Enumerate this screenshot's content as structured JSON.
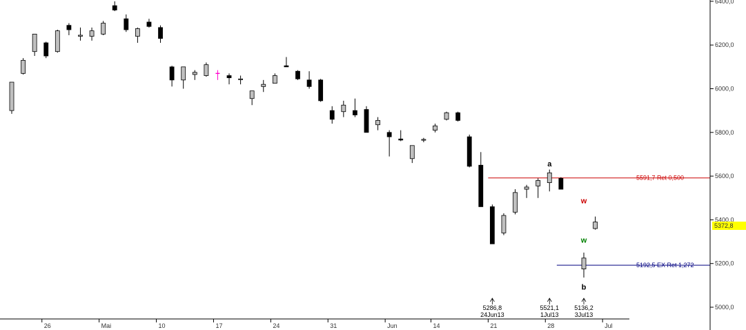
{
  "chart_data": {
    "type": "candlestick",
    "ylim": [
      4950,
      6420
    ],
    "y_ticks": [
      {
        "value": 5000,
        "label": "5000,0"
      },
      {
        "value": 5200,
        "label": "5200,0"
      },
      {
        "value": 5400,
        "label": "5400,0"
      },
      {
        "value": 5600,
        "label": "5600,0"
      },
      {
        "value": 5800,
        "label": "5800,0"
      },
      {
        "value": 6000,
        "label": "6000,0"
      },
      {
        "value": 6200,
        "label": "6200,0"
      },
      {
        "value": 6400,
        "label": "6400,0"
      }
    ],
    "x_ticks": [
      {
        "index": 3,
        "label": "26"
      },
      {
        "index": 8,
        "label": "Mai"
      },
      {
        "index": 13,
        "label": "10"
      },
      {
        "index": 18,
        "label": "17"
      },
      {
        "index": 23,
        "label": "24"
      },
      {
        "index": 28,
        "label": "31"
      },
      {
        "index": 33,
        "label": "Jun"
      },
      {
        "index": 37,
        "label": "14"
      },
      {
        "index": 42,
        "label": "21"
      },
      {
        "index": 47,
        "label": "28"
      },
      {
        "index": 52,
        "label": "Jul"
      }
    ],
    "last_price": {
      "value": 5372.8,
      "label": "5372,8",
      "color": "#ffff00"
    },
    "colors": {
      "up": "#c0c0c0",
      "down": "#000000",
      "doji_highlight": "#ff00cc",
      "grid": "#bbbbbb"
    },
    "candles": [
      {
        "o": 5900,
        "h": 6030,
        "l": 5885,
        "c": 6030
      },
      {
        "o": 6070,
        "h": 6140,
        "l": 6065,
        "c": 6130
      },
      {
        "o": 6170,
        "h": 6250,
        "l": 6150,
        "c": 6250
      },
      {
        "o": 6210,
        "h": 6215,
        "l": 6140,
        "c": 6150
      },
      {
        "o": 6170,
        "h": 6270,
        "l": 6165,
        "c": 6265
      },
      {
        "o": 6290,
        "h": 6300,
        "l": 6245,
        "c": 6270
      },
      {
        "o": 6240,
        "h": 6280,
        "l": 6220,
        "c": 6245
      },
      {
        "o": 6240,
        "h": 6280,
        "l": 6220,
        "c": 6265
      },
      {
        "o": 6250,
        "h": 6310,
        "l": 6245,
        "c": 6300
      },
      {
        "o": 6380,
        "h": 6400,
        "l": 6355,
        "c": 6360
      },
      {
        "o": 6320,
        "h": 6340,
        "l": 6260,
        "c": 6270
      },
      {
        "o": 6240,
        "h": 6280,
        "l": 6210,
        "c": 6275
      },
      {
        "o": 6305,
        "h": 6320,
        "l": 6280,
        "c": 6285
      },
      {
        "o": 6280,
        "h": 6290,
        "l": 6210,
        "c": 6230
      },
      {
        "o": 6100,
        "h": 6105,
        "l": 6010,
        "c": 6040
      },
      {
        "o": 6040,
        "h": 6100,
        "l": 6000,
        "c": 6100
      },
      {
        "o": 6065,
        "h": 6085,
        "l": 6040,
        "c": 6075
      },
      {
        "o": 6060,
        "h": 6120,
        "l": 6055,
        "c": 6110
      },
      {
        "o": 6070,
        "h": 6085,
        "l": 6040,
        "c": 6070,
        "highlight": true
      },
      {
        "o": 6060,
        "h": 6070,
        "l": 6020,
        "c": 6050
      },
      {
        "o": 6045,
        "h": 6060,
        "l": 6020,
        "c": 6045
      },
      {
        "o": 5955,
        "h": 5990,
        "l": 5925,
        "c": 5990
      },
      {
        "o": 6010,
        "h": 6040,
        "l": 5985,
        "c": 6020
      },
      {
        "o": 6025,
        "h": 6070,
        "l": 6025,
        "c": 6060
      },
      {
        "o": 6105,
        "h": 6145,
        "l": 6100,
        "c": 6100
      },
      {
        "o": 6080,
        "h": 6085,
        "l": 6040,
        "c": 6045
      },
      {
        "o": 6040,
        "h": 6080,
        "l": 6000,
        "c": 6010
      },
      {
        "o": 6040,
        "h": 6045,
        "l": 5940,
        "c": 5945
      },
      {
        "o": 5900,
        "h": 5920,
        "l": 5840,
        "c": 5860
      },
      {
        "o": 5895,
        "h": 5945,
        "l": 5870,
        "c": 5925
      },
      {
        "o": 5900,
        "h": 5955,
        "l": 5870,
        "c": 5880
      },
      {
        "o": 5905,
        "h": 5920,
        "l": 5800,
        "c": 5800
      },
      {
        "o": 5835,
        "h": 5870,
        "l": 5810,
        "c": 5855
      },
      {
        "o": 5800,
        "h": 5810,
        "l": 5690,
        "c": 5780
      },
      {
        "o": 5770,
        "h": 5810,
        "l": 5760,
        "c": 5765
      },
      {
        "o": 5680,
        "h": 5740,
        "l": 5660,
        "c": 5740
      },
      {
        "o": 5765,
        "h": 5775,
        "l": 5755,
        "c": 5768
      },
      {
        "o": 5810,
        "h": 5840,
        "l": 5800,
        "c": 5830
      },
      {
        "o": 5860,
        "h": 5895,
        "l": 5855,
        "c": 5890
      },
      {
        "o": 5890,
        "h": 5895,
        "l": 5850,
        "c": 5855
      },
      {
        "o": 5780,
        "h": 5790,
        "l": 5640,
        "c": 5645
      },
      {
        "o": 5650,
        "h": 5710,
        "l": 5460,
        "c": 5460
      },
      {
        "o": 5460,
        "h": 5470,
        "l": 5290,
        "c": 5290
      },
      {
        "o": 5340,
        "h": 5430,
        "l": 5330,
        "c": 5420
      },
      {
        "o": 5435,
        "h": 5540,
        "l": 5425,
        "c": 5525
      },
      {
        "o": 5540,
        "h": 5560,
        "l": 5500,
        "c": 5550
      },
      {
        "o": 5555,
        "h": 5590,
        "l": 5500,
        "c": 5580
      },
      {
        "o": 5570,
        "h": 5630,
        "l": 5530,
        "c": 5615
      },
      {
        "o": 5590,
        "h": 5595,
        "l": 5540,
        "c": 5540
      },
      null,
      {
        "o": 5175,
        "h": 5250,
        "l": 5136,
        "c": 5225
      },
      {
        "o": 5360,
        "h": 5415,
        "l": 5355,
        "c": 5390
      }
    ],
    "levels": [
      {
        "value": 5591.7,
        "label": "5591,7 Ret 0,500",
        "color": "#cc0000",
        "from_index": 42
      },
      {
        "value": 5192.5,
        "label": "5192,5 EX Ret 1,272",
        "color": "#000080",
        "from_index": 48
      }
    ],
    "wave_labels": [
      {
        "text": "a",
        "index": 47,
        "value": 5645,
        "color": "#000000"
      },
      {
        "text": "w",
        "index": 50,
        "value": 5475,
        "color": "#cc0000"
      },
      {
        "text": "w",
        "index": 50,
        "value": 5295,
        "color": "#008000"
      },
      {
        "text": "b",
        "index": 50,
        "value": 5080,
        "color": "#000000"
      }
    ],
    "low_annotations": [
      {
        "index": 42,
        "value": "5286,8",
        "date": "24Jun13"
      },
      {
        "index": 47,
        "value": "5521,1",
        "date": "1Jul13"
      },
      {
        "index": 50,
        "value": "5136,2",
        "date": "3Jul13"
      }
    ]
  }
}
